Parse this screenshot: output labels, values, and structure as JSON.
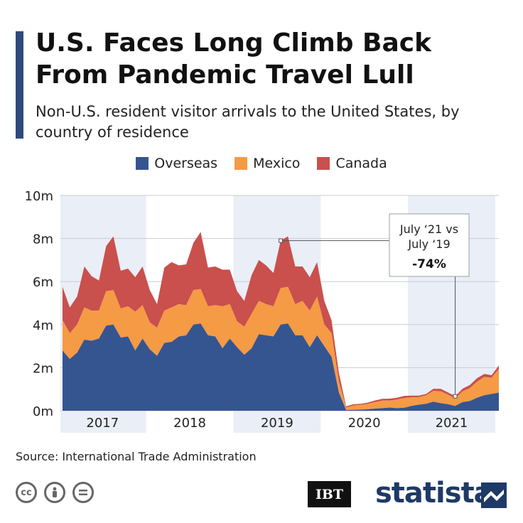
{
  "header": {
    "title": "U.S. Faces Long Climb Back From Pandemic Travel Lull",
    "subtitle": "Non-U.S. resident visitor arrivals to the United States, by country of residence"
  },
  "colors": {
    "accent": "#2e4a7d",
    "overseas": "#355591",
    "mexico": "#f59a45",
    "canada": "#c9504d",
    "band": "#eaeef6"
  },
  "chart_data": {
    "type": "area",
    "stacked": true,
    "title": "U.S. Faces Long Climb Back From Pandemic Travel Lull",
    "subtitle": "Non-U.S. resident visitor arrivals to the United States, by country of residence",
    "xlabel": "",
    "ylabel": "",
    "y_tick_labels": [
      "0m",
      "2m",
      "4m",
      "6m",
      "8m",
      "10m"
    ],
    "y_ticks": [
      0,
      2,
      4,
      6,
      8,
      10
    ],
    "ylim": [
      0,
      10
    ],
    "x_start": "2017-01",
    "x_end": "2021-07",
    "year_labels": [
      "2017",
      "2018",
      "2019",
      "2020",
      "2021"
    ],
    "grid": true,
    "legend_position": "top",
    "series": [
      {
        "name": "Overseas",
        "values": [
          2.8,
          2.4,
          2.7,
          3.3,
          3.25,
          3.35,
          3.95,
          4.0,
          3.4,
          3.45,
          2.8,
          3.35,
          2.85,
          2.55,
          3.15,
          3.2,
          3.45,
          3.5,
          4.0,
          4.05,
          3.5,
          3.45,
          2.9,
          3.35,
          2.95,
          2.6,
          2.9,
          3.55,
          3.5,
          3.45,
          4.0,
          4.05,
          3.5,
          3.5,
          2.95,
          3.5,
          3.0,
          2.5,
          0.85,
          0.03,
          0.04,
          0.05,
          0.07,
          0.1,
          0.12,
          0.15,
          0.12,
          0.14,
          0.22,
          0.28,
          0.32,
          0.42,
          0.35,
          0.3,
          0.22,
          0.4,
          0.45,
          0.6,
          0.72,
          0.78,
          0.84
        ]
      },
      {
        "name": "Mexico",
        "values": [
          1.4,
          1.2,
          1.3,
          1.5,
          1.4,
          1.3,
          1.6,
          1.6,
          1.35,
          1.4,
          1.8,
          1.55,
          1.25,
          1.3,
          1.5,
          1.6,
          1.5,
          1.4,
          1.6,
          1.6,
          1.35,
          1.45,
          1.95,
          1.6,
          1.2,
          1.3,
          1.6,
          1.55,
          1.45,
          1.4,
          1.7,
          1.7,
          1.45,
          1.6,
          1.7,
          1.8,
          1.0,
          1.1,
          0.5,
          0.12,
          0.2,
          0.22,
          0.25,
          0.3,
          0.35,
          0.32,
          0.4,
          0.45,
          0.4,
          0.35,
          0.4,
          0.5,
          0.55,
          0.45,
          0.35,
          0.5,
          0.6,
          0.75,
          0.85,
          0.75,
          1.1
        ]
      },
      {
        "name": "Canada",
        "values": [
          1.55,
          1.2,
          1.3,
          1.9,
          1.6,
          1.4,
          2.1,
          2.5,
          1.75,
          1.75,
          1.6,
          1.8,
          1.5,
          1.1,
          2.0,
          2.1,
          1.8,
          1.9,
          2.2,
          2.65,
          1.8,
          1.8,
          1.7,
          1.6,
          1.4,
          1.2,
          1.8,
          1.9,
          1.8,
          1.55,
          2.2,
          2.35,
          1.75,
          1.6,
          1.55,
          1.6,
          1.1,
          0.6,
          0.4,
          0.05,
          0.06,
          0.05,
          0.06,
          0.08,
          0.08,
          0.09,
          0.08,
          0.1,
          0.08,
          0.07,
          0.06,
          0.1,
          0.12,
          0.1,
          0.1,
          0.12,
          0.14,
          0.16,
          0.14,
          0.12,
          0.16
        ]
      }
    ],
    "annotation": {
      "line1": "July ‘21 vs",
      "line2": "July ‘19",
      "value": "-74%",
      "from": "2019-07",
      "to": "2021-07"
    }
  },
  "footer": {
    "source": "Source: International Trade Administration",
    "icons": [
      "cc-icon",
      "person-icon",
      "equals-icon"
    ],
    "partner_logo": "IBT",
    "brand": "statista"
  }
}
